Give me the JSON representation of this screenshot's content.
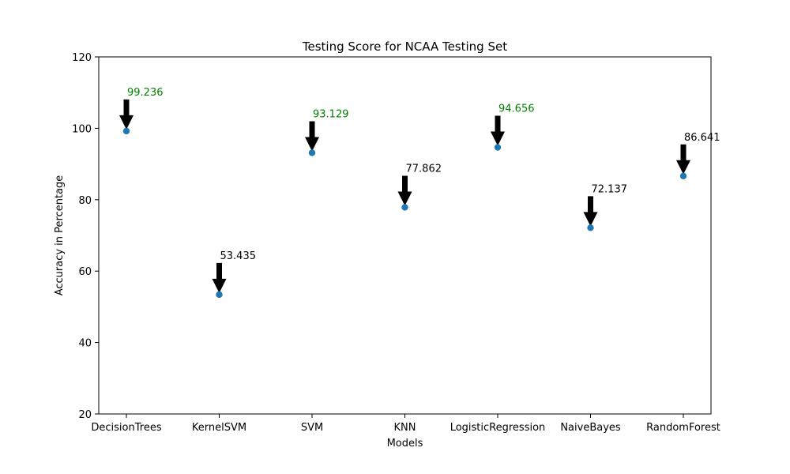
{
  "chart_data": {
    "type": "scatter",
    "title": "Testing Score for NCAA Testing Set",
    "xlabel": "Models",
    "ylabel": "Accuracy in Percentage",
    "categories": [
      "DecisionTrees",
      "KernelSVM",
      "SVM",
      "KNN",
      "LogisticRegression",
      "NaiveBayes",
      "RandomForest"
    ],
    "values": [
      99.236,
      53.435,
      93.129,
      77.862,
      94.656,
      72.137,
      86.641
    ],
    "data_labels": [
      "99.236",
      "53.435",
      "93.129",
      "77.862",
      "94.656",
      "72.137",
      "86.641"
    ],
    "highlighted": [
      true,
      false,
      true,
      false,
      true,
      false,
      false
    ],
    "ylim": [
      20,
      120
    ],
    "yticks": [
      20,
      40,
      60,
      80,
      100,
      120
    ],
    "grid": false,
    "legend": "none",
    "annotation_style": "arrow-pointing-down-to-point",
    "colors": {
      "marker": "#1f77b4",
      "highlight_label": "#008000",
      "normal_label": "#000000",
      "arrow": "#000000"
    }
  }
}
